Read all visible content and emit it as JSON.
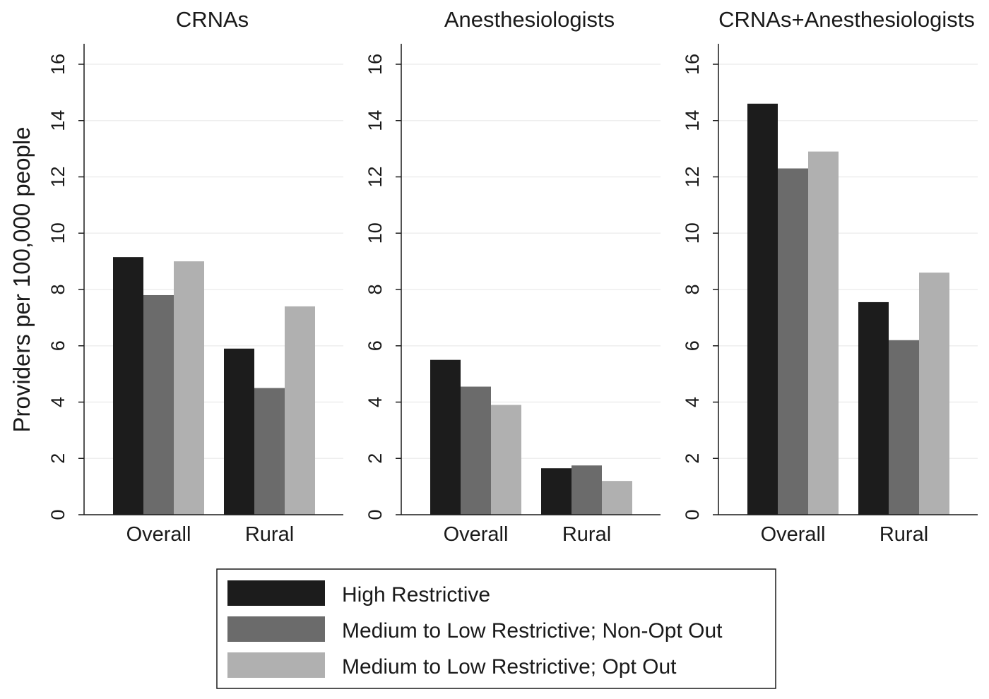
{
  "chart_data": {
    "type": "bar",
    "ylabel": "Providers per 100,000 people",
    "ylim": [
      0,
      16
    ],
    "yticks": [
      0,
      2,
      4,
      6,
      8,
      10,
      12,
      14,
      16
    ],
    "grid": true,
    "legend_position": "bottom",
    "legend": [
      {
        "name": "High Restrictive",
        "color": "#1c1c1c"
      },
      {
        "name": "Medium to Low Restrictive; Non-Opt Out",
        "color": "#6b6b6b"
      },
      {
        "name": "Medium to Low Restrictive; Opt Out",
        "color": "#b0b0b0"
      }
    ],
    "panels": [
      {
        "title": "CRNAs",
        "categories": [
          "Overall",
          "Rural"
        ],
        "series": [
          {
            "name": "High Restrictive",
            "values": [
              9.15,
              5.9
            ]
          },
          {
            "name": "Medium to Low Restrictive; Non-Opt Out",
            "values": [
              7.8,
              4.5
            ]
          },
          {
            "name": "Medium to Low Restrictive; Opt Out",
            "values": [
              9.0,
              7.4
            ]
          }
        ]
      },
      {
        "title": "Anesthesiologists",
        "categories": [
          "Overall",
          "Rural"
        ],
        "series": [
          {
            "name": "High Restrictive",
            "values": [
              5.5,
              1.65
            ]
          },
          {
            "name": "Medium to Low Restrictive; Non-Opt Out",
            "values": [
              4.55,
              1.75
            ]
          },
          {
            "name": "Medium to Low Restrictive; Opt Out",
            "values": [
              3.9,
              1.2
            ]
          }
        ]
      },
      {
        "title": "CRNAs+Anesthesiologists",
        "categories": [
          "Overall",
          "Rural"
        ],
        "series": [
          {
            "name": "High Restrictive",
            "values": [
              14.6,
              7.55
            ]
          },
          {
            "name": "Medium to Low Restrictive; Non-Opt Out",
            "values": [
              12.3,
              6.2
            ]
          },
          {
            "name": "Medium to Low Restrictive; Opt Out",
            "values": [
              12.9,
              8.6
            ]
          }
        ]
      }
    ]
  }
}
